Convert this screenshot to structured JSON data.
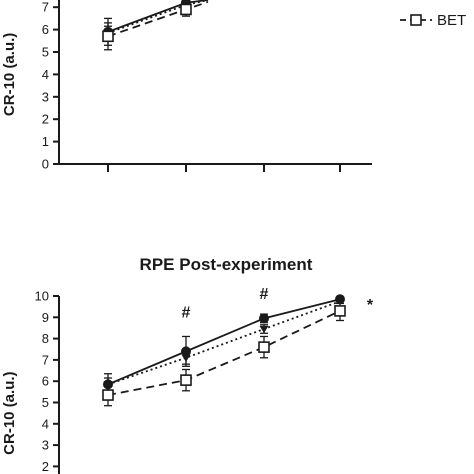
{
  "chart_data": [
    {
      "type": "line",
      "title": "",
      "ylabel": "CR-10 (a.u.)",
      "ylim": [
        0,
        10
      ],
      "yticks": [
        "0",
        "1",
        "2",
        "3",
        "4",
        "5",
        "6",
        "7"
      ],
      "x": [
        1,
        2,
        3,
        4
      ],
      "legend": {
        "placement": "top-right",
        "entries": [
          "BET"
        ]
      },
      "series": [
        {
          "style": "solid",
          "marker": "filled-circle",
          "values": [
            5.9,
            7.2,
            null,
            null
          ],
          "errors": [
            0.6,
            0.4,
            null,
            null
          ],
          "color": "#1a1a1a"
        },
        {
          "style": "dotted",
          "marker": "filled-triangle-down",
          "values": [
            5.85,
            7.1,
            null,
            null
          ],
          "errors": [
            0.3,
            0.3,
            null,
            null
          ],
          "color": "#1a1a1a"
        },
        {
          "name": "BET",
          "style": "dashed",
          "marker": "open-square",
          "values": [
            5.7,
            6.9,
            null,
            null
          ],
          "errors": [
            0.6,
            0.3,
            null,
            null
          ],
          "color": "#1a1a1a"
        }
      ]
    },
    {
      "type": "line",
      "title": "RPE Post-experiment",
      "ylabel": "CR-10 (a.u.)",
      "ylim": [
        0,
        10
      ],
      "yticks": [
        "2",
        "3",
        "4",
        "5",
        "6",
        "7",
        "8",
        "9",
        "10"
      ],
      "x": [
        1,
        2,
        3,
        4
      ],
      "annotations": [
        {
          "text": "#",
          "x": 2
        },
        {
          "text": "#",
          "x": 3
        },
        {
          "text": "*",
          "x": 4.3
        }
      ],
      "series": [
        {
          "style": "solid",
          "marker": "filled-circle",
          "values": [
            5.85,
            7.4,
            8.95,
            9.85
          ],
          "errors": [
            0.5,
            0.7,
            0.2,
            0.05
          ],
          "color": "#1a1a1a"
        },
        {
          "style": "dotted",
          "marker": "filled-triangle-down",
          "values": [
            5.85,
            7.1,
            8.45,
            9.75
          ],
          "errors": [
            0.3,
            0.3,
            0.2,
            0.1
          ],
          "color": "#1a1a1a"
        },
        {
          "style": "dashed",
          "marker": "open-square",
          "values": [
            5.35,
            6.05,
            7.6,
            9.3
          ],
          "errors": [
            0.5,
            0.5,
            0.5,
            0.45
          ],
          "color": "#1a1a1a"
        }
      ]
    }
  ]
}
